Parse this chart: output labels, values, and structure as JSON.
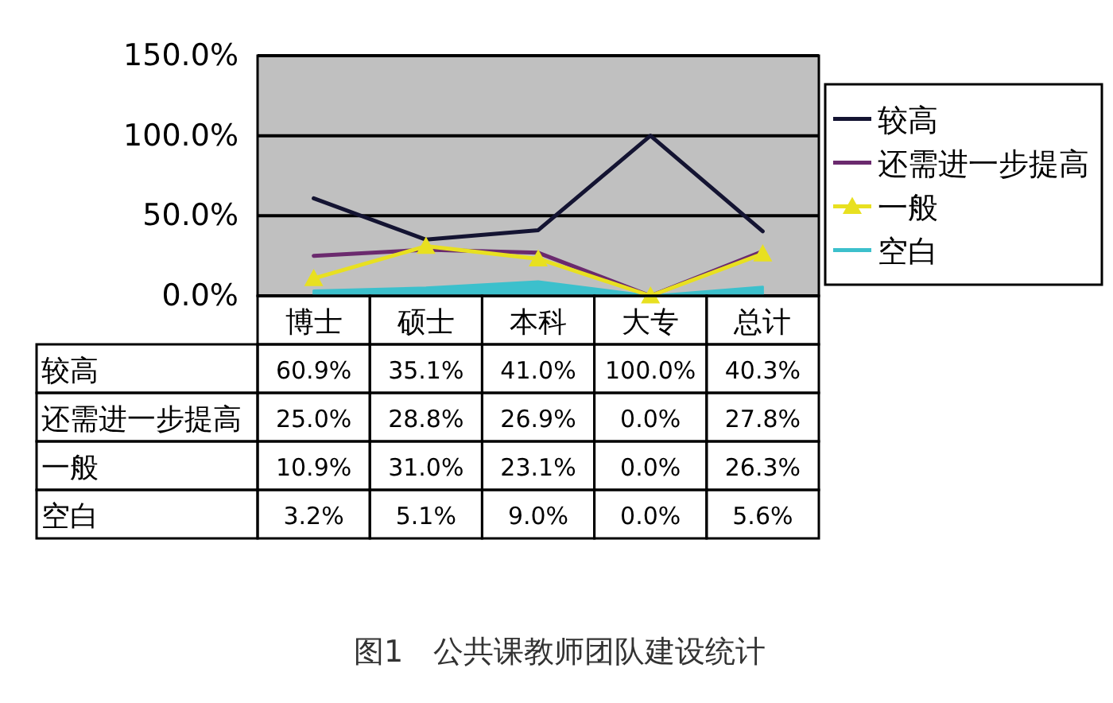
{
  "chart_data": {
    "type": "line",
    "categories": [
      "博士",
      "硕士",
      "本科",
      "大专",
      "总计"
    ],
    "ylim": [
      0,
      150
    ],
    "yticks": [
      {
        "value": 0,
        "label": "0.0%"
      },
      {
        "value": 50,
        "label": "50.0%"
      },
      {
        "value": 100,
        "label": "100.0%"
      },
      {
        "value": 150,
        "label": "150.0%"
      }
    ],
    "grid": "y",
    "legend": "right",
    "series": [
      {
        "name": "较高",
        "color": "#141432",
        "values": [
          60.9,
          35.1,
          41.0,
          100.0,
          40.3
        ],
        "value_labels": [
          "60.9%",
          "35.1%",
          "41.0%",
          "100.0%",
          "40.3%"
        ]
      },
      {
        "name": "还需进一步提高",
        "color": "#6b2a6e",
        "values": [
          25.0,
          28.8,
          26.9,
          0.0,
          27.8
        ],
        "value_labels": [
          "25.0%",
          "28.8%",
          "26.9%",
          "0.0%",
          "27.8%"
        ]
      },
      {
        "name": "一般",
        "color": "#e8e020",
        "marker": "triangle",
        "values": [
          10.9,
          31.0,
          23.1,
          0.0,
          26.3
        ],
        "value_labels": [
          "10.9%",
          "31.0%",
          "23.1%",
          "0.0%",
          "26.3%"
        ]
      },
      {
        "name": "空白",
        "type": "area",
        "color": "#3cc0cc",
        "values": [
          3.2,
          5.1,
          9.0,
          0.0,
          5.6
        ],
        "value_labels": [
          "3.2%",
          "5.1%",
          "9.0%",
          "0.0%",
          "5.6%"
        ]
      }
    ],
    "annotations": [
      "图1　公共课教师团队建设统计"
    ]
  }
}
